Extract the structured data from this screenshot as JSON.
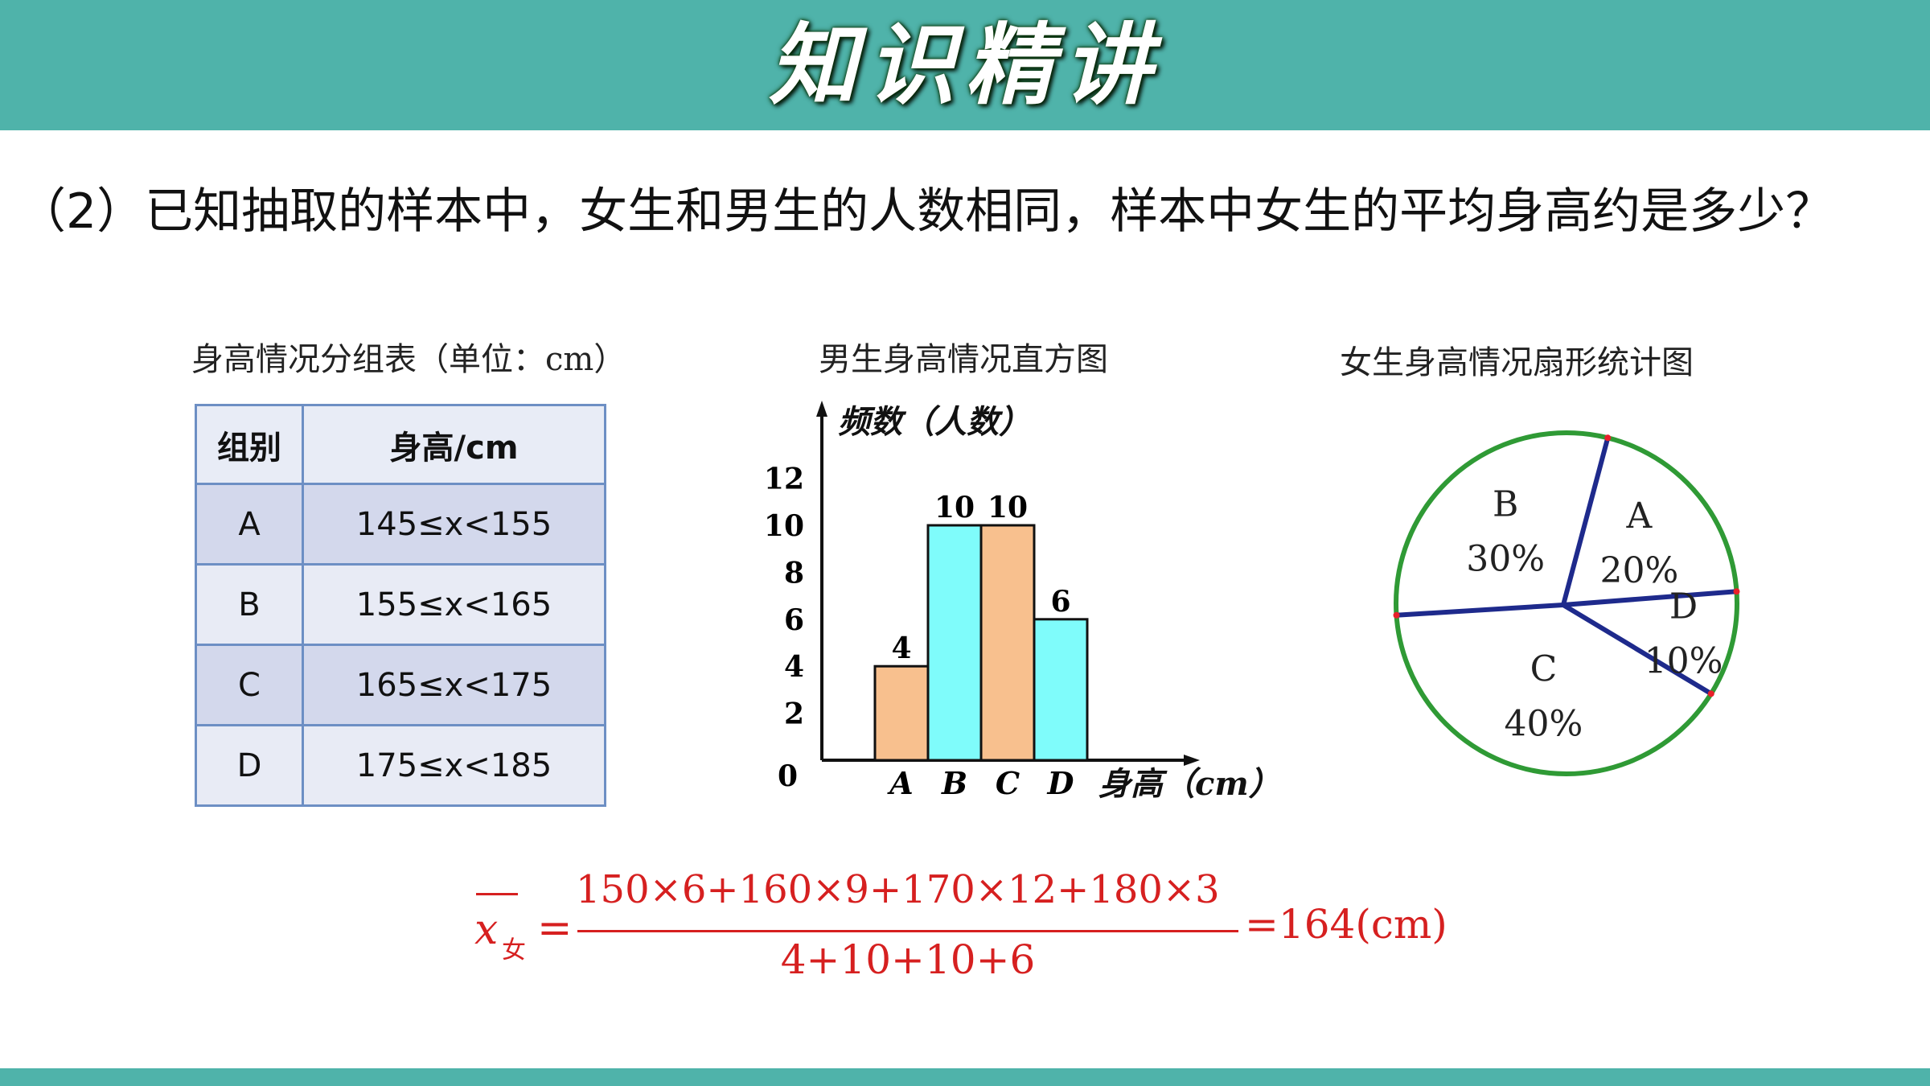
{
  "header": {
    "title": "知识精讲"
  },
  "question": {
    "text": "（2）已知抽取的样本中，女生和男生的人数相同，样本中女生的平均身高约是多少？"
  },
  "table": {
    "caption": "身高情况分组表（单位：cm）",
    "headers": [
      "组别",
      "身高/cm"
    ],
    "rows": [
      {
        "group": "A",
        "range": "145≤x<155"
      },
      {
        "group": "B",
        "range": "155≤x<165"
      },
      {
        "group": "C",
        "range": "165≤x<175"
      },
      {
        "group": "D",
        "range": "175≤x<185"
      }
    ]
  },
  "chart_data": [
    {
      "type": "bar",
      "title": "男生身高情况直方图",
      "ylabel": "频数（人数）",
      "xlabel": "身高（cm）",
      "categories": [
        "A",
        "B",
        "C",
        "D"
      ],
      "values": [
        4,
        10,
        10,
        6
      ],
      "yticks": [
        "0",
        "2",
        "4",
        "6",
        "8",
        "10",
        "12"
      ],
      "ylim": [
        0,
        12
      ],
      "colors": [
        "#f8c08e",
        "#7ffcfb",
        "#f8c08e",
        "#7ffcfb"
      ]
    },
    {
      "type": "pie",
      "title": "女生身高情况扇形统计图",
      "labels": [
        "A",
        "B",
        "C",
        "D"
      ],
      "values": [
        20,
        30,
        40,
        10
      ],
      "value_labels": [
        "20%",
        "30%",
        "40%",
        "10%"
      ],
      "circle_color": "#2f9a35",
      "radius_color": "#1e2a8c"
    }
  ],
  "formula": {
    "lhs_var": "x",
    "lhs_sub": "女",
    "equals": "=",
    "numerator": "150×6+160×9+170×12+180×3",
    "denominator": "4+10+10+6",
    "result": "=164(cm)",
    "color": "#d62020"
  }
}
